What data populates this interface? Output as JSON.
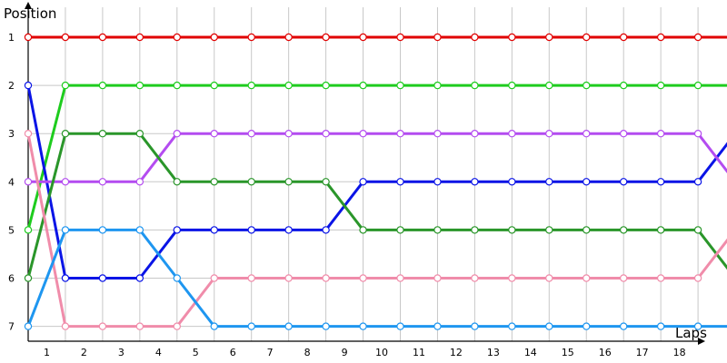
{
  "chart_data": {
    "type": "line",
    "ylabel": "Position",
    "xlabel": "Laps",
    "x": [
      0,
      1,
      2,
      3,
      4,
      5,
      6,
      7,
      8,
      9,
      10,
      11,
      12,
      13,
      14,
      15,
      16,
      17,
      18,
      19
    ],
    "xtick_labels": [
      "1",
      "2",
      "3",
      "4",
      "5",
      "6",
      "7",
      "8",
      "9",
      "10",
      "11",
      "12",
      "13",
      "14",
      "15",
      "16",
      "17",
      "18"
    ],
    "ytick_labels": [
      "1",
      "2",
      "3",
      "4",
      "5",
      "6",
      "7"
    ],
    "ylim": [
      1,
      7
    ],
    "y_inverted": true,
    "grid": true,
    "series": [
      {
        "color": "#e00000",
        "values": [
          1,
          1,
          1,
          1,
          1,
          1,
          1,
          1,
          1,
          1,
          1,
          1,
          1,
          1,
          1,
          1,
          1,
          1,
          1,
          1
        ]
      },
      {
        "color": "#1ecc1e",
        "values": [
          5,
          2,
          2,
          2,
          2,
          2,
          2,
          2,
          2,
          2,
          2,
          2,
          2,
          2,
          2,
          2,
          2,
          2,
          2,
          2
        ]
      },
      {
        "color": "#0a14e6",
        "values": [
          2,
          6,
          6,
          6,
          5,
          5,
          5,
          5,
          5,
          4,
          4,
          4,
          4,
          4,
          4,
          4,
          4,
          4,
          4,
          3
        ]
      },
      {
        "color": "#b44cf0",
        "values": [
          4,
          4,
          4,
          4,
          3,
          3,
          3,
          3,
          3,
          3,
          3,
          3,
          3,
          3,
          3,
          3,
          3,
          3,
          3,
          4
        ]
      },
      {
        "color": "#2a962a",
        "values": [
          6,
          3,
          3,
          3,
          4,
          4,
          4,
          4,
          4,
          5,
          5,
          5,
          5,
          5,
          5,
          5,
          5,
          5,
          5,
          6
        ]
      },
      {
        "color": "#f08caa",
        "values": [
          3,
          7,
          7,
          7,
          7,
          6,
          6,
          6,
          6,
          6,
          6,
          6,
          6,
          6,
          6,
          6,
          6,
          6,
          6,
          5
        ]
      },
      {
        "color": "#1e96f0",
        "values": [
          7,
          5,
          5,
          5,
          6,
          7,
          7,
          7,
          7,
          7,
          7,
          7,
          7,
          7,
          7,
          7,
          7,
          7,
          7,
          7
        ]
      }
    ]
  }
}
